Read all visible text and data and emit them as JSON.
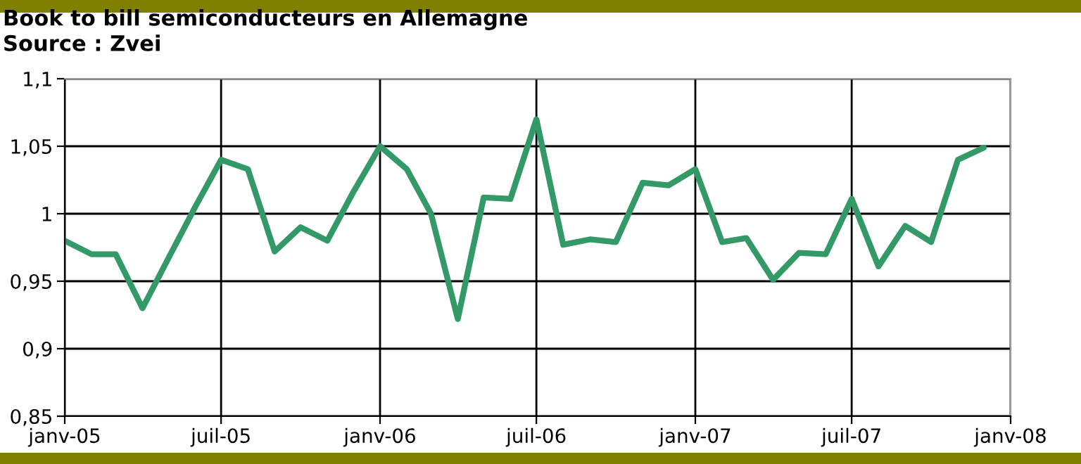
{
  "chart_data": {
    "type": "line",
    "title": "Book to bill semiconducteurs en Allemagne",
    "subtitle": "Source : Zvei",
    "x": [
      "2005-01",
      "2005-02",
      "2005-03",
      "2005-04",
      "2005-05",
      "2005-06",
      "2005-07",
      "2005-08",
      "2005-09",
      "2005-10",
      "2005-11",
      "2005-12",
      "2006-01",
      "2006-02",
      "2006-03",
      "2006-04",
      "2006-05",
      "2006-06",
      "2006-07",
      "2006-08",
      "2006-09",
      "2006-10",
      "2006-11",
      "2006-12",
      "2007-01",
      "2007-02",
      "2007-03",
      "2007-04",
      "2007-05",
      "2007-06",
      "2007-07",
      "2007-08",
      "2007-09",
      "2007-10",
      "2007-11",
      "2007-12"
    ],
    "series": [
      {
        "color": "#339966",
        "values": [
          0.98,
          0.97,
          0.97,
          0.93,
          0.967,
          1.005,
          1.04,
          1.033,
          0.972,
          0.99,
          0.98,
          1.016,
          1.05,
          1.033,
          1.0,
          0.922,
          1.012,
          1.011,
          1.07,
          0.977,
          0.981,
          0.979,
          1.023,
          1.021,
          1.033,
          0.979,
          0.982,
          0.951,
          0.971,
          0.97,
          1.011,
          0.961,
          0.991,
          0.979,
          1.04,
          1.049
        ]
      }
    ],
    "xlim": [
      "2005-01-01",
      "2008-01-01"
    ],
    "xticks": [
      {
        "value": "2005-01-01",
        "label": "janv-05"
      },
      {
        "value": "2005-07-01",
        "label": "juil-05"
      },
      {
        "value": "2006-01-01",
        "label": "janv-06"
      },
      {
        "value": "2006-07-01",
        "label": "juil-06"
      },
      {
        "value": "2007-01-01",
        "label": "janv-07"
      },
      {
        "value": "2007-07-01",
        "label": "juil-07"
      },
      {
        "value": "2008-01-01",
        "label": "janv-08"
      }
    ],
    "ylim": [
      0.85,
      1.1
    ],
    "yticks": [
      {
        "value": 0.85,
        "label": "0,85"
      },
      {
        "value": 0.9,
        "label": "0,9"
      },
      {
        "value": 0.95,
        "label": "0,95"
      },
      {
        "value": 1,
        "label": "1"
      },
      {
        "value": 1.05,
        "label": "1,05"
      },
      {
        "value": 1.1,
        "label": "1,1"
      }
    ],
    "grid": true,
    "marker": "none",
    "line_style": "solid",
    "legend": false
  }
}
